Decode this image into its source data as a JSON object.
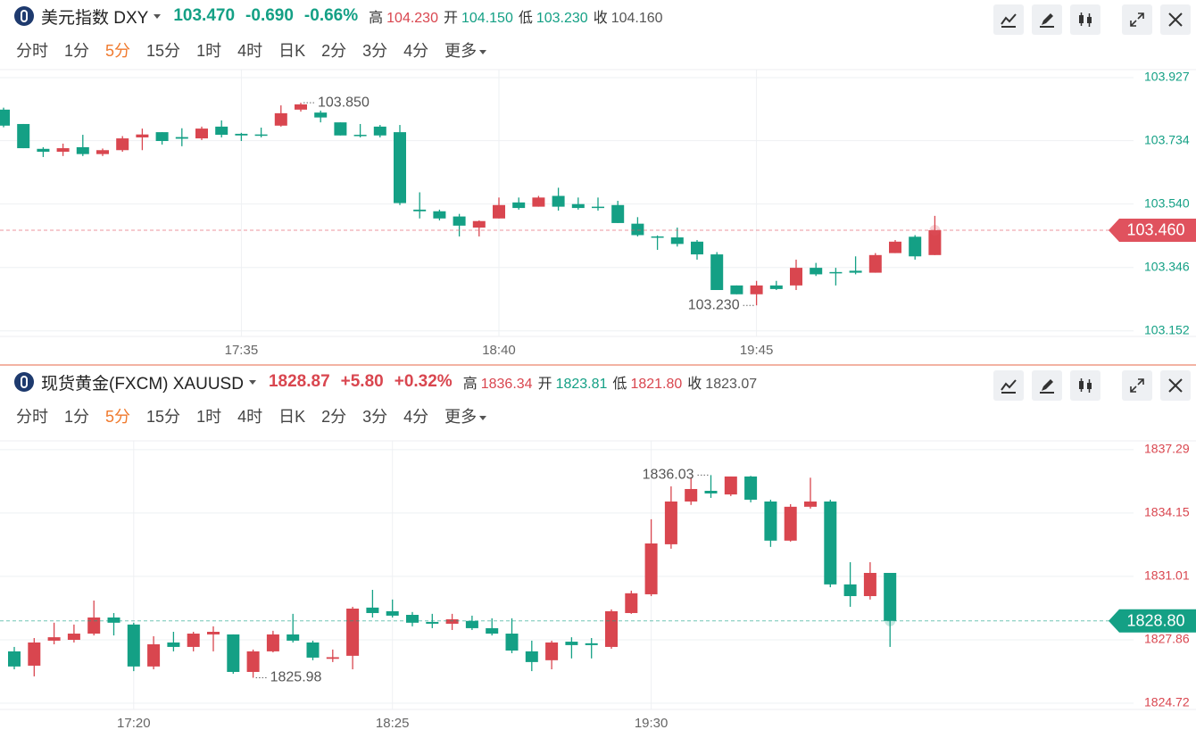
{
  "panels": [
    {
      "title": "美元指数 DXY",
      "last": "103.470",
      "change": "-0.690",
      "change_pct": "-0.66%",
      "quote_color": "#14a085",
      "stats": [
        {
          "label": "高",
          "value": "104.230",
          "color": "#d9464f"
        },
        {
          "label": "开",
          "value": "104.150",
          "color": "#14a085"
        },
        {
          "label": "低",
          "value": "103.230",
          "color": "#14a085"
        },
        {
          "label": "收",
          "value": "104.160",
          "color": "#555555"
        }
      ],
      "intervals": [
        "分时",
        "1分",
        "5分",
        "15分",
        "1时",
        "4时",
        "日K",
        "2分",
        "3分",
        "4分",
        "更多"
      ],
      "active": 2
    },
    {
      "title": "现货黄金(FXCM) XAUUSD",
      "last": "1828.87",
      "change": "+5.80",
      "change_pct": "+0.32%",
      "quote_color": "#d9464f",
      "stats": [
        {
          "label": "高",
          "value": "1836.34",
          "color": "#d9464f"
        },
        {
          "label": "开",
          "value": "1823.81",
          "color": "#14a085"
        },
        {
          "label": "低",
          "value": "1821.80",
          "color": "#d9464f"
        },
        {
          "label": "收",
          "value": "1823.07",
          "color": "#555555"
        }
      ],
      "intervals": [
        "分时",
        "1分",
        "5分",
        "15分",
        "1时",
        "4时",
        "日K",
        "2分",
        "3分",
        "4分",
        "更多"
      ],
      "active": 2
    }
  ],
  "chart_data": [
    {
      "type": "candlestick",
      "up_color": "#d9464f",
      "down_color": "#14a085",
      "tick_color": "#14a085",
      "grid": true,
      "categories": [
        null,
        null,
        null,
        null,
        null,
        null,
        null,
        null,
        null,
        null,
        null,
        null,
        "17:35",
        null,
        null,
        null,
        null,
        null,
        null,
        null,
        null,
        null,
        null,
        null,
        null,
        "18:40",
        null,
        null,
        null,
        null,
        null,
        null,
        null,
        null,
        null,
        null,
        null,
        null,
        "19:45",
        null,
        null,
        null,
        null,
        null,
        null,
        null,
        null,
        null
      ],
      "open": [
        103.829,
        103.785,
        103.709,
        103.7,
        103.714,
        103.693,
        103.705,
        103.744,
        103.76,
        103.745,
        103.741,
        103.777,
        103.755,
        103.753,
        103.78,
        103.829,
        103.82,
        103.79,
        103.752,
        103.777,
        103.76,
        103.523,
        103.518,
        103.502,
        103.468,
        103.496,
        103.545,
        103.532,
        103.565,
        103.54,
        103.532,
        103.537,
        103.48,
        103.441,
        103.438,
        103.425,
        103.386,
        103.291,
        103.264,
        103.291,
        103.291,
        103.345,
        103.332,
        103.336,
        103.33,
        103.39,
        103.44,
        103.384
      ],
      "high": [
        103.835,
        103.785,
        103.714,
        103.725,
        103.752,
        103.71,
        103.748,
        103.771,
        103.76,
        103.772,
        103.777,
        103.796,
        103.758,
        103.774,
        103.842,
        103.85,
        103.826,
        103.79,
        103.785,
        103.782,
        103.782,
        103.576,
        103.523,
        103.51,
        103.49,
        103.56,
        103.56,
        103.565,
        103.59,
        103.56,
        103.56,
        103.55,
        103.5,
        103.444,
        103.468,
        103.43,
        103.393,
        103.291,
        103.305,
        103.305,
        103.37,
        103.36,
        103.345,
        103.38,
        103.39,
        103.43,
        103.445,
        103.504
      ],
      "low": [
        103.775,
        103.711,
        103.684,
        103.687,
        103.687,
        103.687,
        103.7,
        103.705,
        103.722,
        103.717,
        103.736,
        103.744,
        103.733,
        103.744,
        103.777,
        103.823,
        103.79,
        103.75,
        103.744,
        103.744,
        103.537,
        103.496,
        103.49,
        103.441,
        103.441,
        103.496,
        103.523,
        103.532,
        103.52,
        103.523,
        103.52,
        103.482,
        103.441,
        103.4,
        103.41,
        103.37,
        103.277,
        103.264,
        103.23,
        103.277,
        103.277,
        103.32,
        103.291,
        103.325,
        103.33,
        103.39,
        103.37,
        103.384
      ],
      "close": [
        103.78,
        103.711,
        103.7,
        103.711,
        103.693,
        103.705,
        103.741,
        103.753,
        103.733,
        103.74,
        103.771,
        103.752,
        103.75,
        103.75,
        103.818,
        103.845,
        103.805,
        103.75,
        103.749,
        103.75,
        103.543,
        103.518,
        103.496,
        103.474,
        103.488,
        103.537,
        103.528,
        103.56,
        103.532,
        103.528,
        103.53,
        103.482,
        103.445,
        103.438,
        103.418,
        103.386,
        103.277,
        103.264,
        103.291,
        103.28,
        103.345,
        103.325,
        103.33,
        103.33,
        103.384,
        103.425,
        103.38,
        103.46
      ],
      "ylim": [
        103.135,
        103.946
      ],
      "yticks": [
        103.927,
        103.734,
        {
          "value": 103.54,
          "label": "103.540"
        },
        103.346,
        103.152
      ],
      "max_label": "103.850",
      "min_label": "103.230",
      "last_price": 103.46,
      "last_price_label": "103.460",
      "last_price_color": "#e0525e"
    },
    {
      "type": "candlestick",
      "up_color": "#d9464f",
      "down_color": "#14a085",
      "tick_color": "#d9464f",
      "grid": true,
      "categories": [
        null,
        null,
        null,
        null,
        null,
        null,
        "17:20",
        null,
        null,
        null,
        null,
        null,
        null,
        null,
        null,
        null,
        null,
        null,
        null,
        "18:25",
        null,
        null,
        null,
        null,
        null,
        null,
        null,
        null,
        null,
        null,
        null,
        null,
        "19:30",
        null,
        null,
        null,
        null,
        null,
        null,
        null,
        null,
        null,
        null,
        null,
        null
      ],
      "open": [
        1827.29,
        1826.58,
        1827.82,
        1827.86,
        1828.17,
        1828.97,
        1828.62,
        1826.54,
        1827.73,
        1827.51,
        1828.13,
        1828.13,
        1826.27,
        1827.29,
        1828.13,
        1827.73,
        1826.92,
        1827.07,
        1829.46,
        1829.28,
        1829.1,
        1828.75,
        1828.66,
        1828.8,
        1828.44,
        1828.17,
        1827.29,
        1826.85,
        1827.77,
        1827.69,
        1827.51,
        1829.19,
        1830.12,
        1832.6,
        1834.72,
        1835.25,
        1835.07,
        1835.96,
        1834.72,
        1832.78,
        1834.46,
        1834.72,
        1830.61,
        1830.03,
        1831.18
      ],
      "high": [
        1827.51,
        1827.95,
        1828.71,
        1828.62,
        1829.81,
        1829.19,
        1828.71,
        1828.04,
        1828.26,
        1828.26,
        1828.53,
        1828.13,
        1827.38,
        1828.31,
        1829.15,
        1827.82,
        1827.38,
        1829.5,
        1830.34,
        1829.86,
        1829.24,
        1829.15,
        1829.15,
        1829.06,
        1828.93,
        1828.93,
        1827.82,
        1827.82,
        1827.99,
        1827.95,
        1829.37,
        1830.3,
        1833.84,
        1835.47,
        1835.92,
        1836.03,
        1835.96,
        1835.99,
        1834.81,
        1834.59,
        1835.9,
        1834.81,
        1831.71,
        1831.71,
        1831.18
      ],
      "low": [
        1826.4,
        1826.05,
        1827.64,
        1827.73,
        1828.08,
        1828.08,
        1826.31,
        1826.4,
        1827.29,
        1827.29,
        1827.29,
        1826.18,
        1825.98,
        1827.24,
        1827.73,
        1826.85,
        1826.76,
        1826.4,
        1828.97,
        1828.97,
        1828.53,
        1828.44,
        1828.35,
        1828.35,
        1828.08,
        1827.2,
        1826.31,
        1826.4,
        1826.94,
        1826.94,
        1827.42,
        1829.15,
        1830.03,
        1832.38,
        1834.55,
        1834.9,
        1834.99,
        1834.68,
        1832.47,
        1832.73,
        1834.37,
        1830.47,
        1829.5,
        1829.86,
        1827.51
      ],
      "close": [
        1826.54,
        1827.73,
        1827.99,
        1828.17,
        1828.97,
        1828.71,
        1826.54,
        1827.64,
        1827.51,
        1828.17,
        1828.26,
        1826.27,
        1827.29,
        1828.13,
        1827.82,
        1826.98,
        1827.0,
        1829.41,
        1829.19,
        1829.06,
        1828.71,
        1828.66,
        1828.88,
        1828.44,
        1828.17,
        1827.33,
        1826.76,
        1827.73,
        1827.6,
        1827.6,
        1829.28,
        1830.17,
        1832.64,
        1834.72,
        1835.34,
        1835.12,
        1835.96,
        1834.81,
        1832.78,
        1834.46,
        1834.72,
        1830.61,
        1830.03,
        1831.18,
        1828.8
      ],
      "ylim": [
        1824.41,
        1837.64
      ],
      "yticks": [
        1837.29,
        1834.15,
        1831.01,
        1827.86,
        1824.72
      ],
      "max_label": "1836.03",
      "min_label": "1825.98",
      "last_price": 1828.8,
      "last_price_label": "1828.80",
      "last_price_color": "#14a085"
    }
  ]
}
